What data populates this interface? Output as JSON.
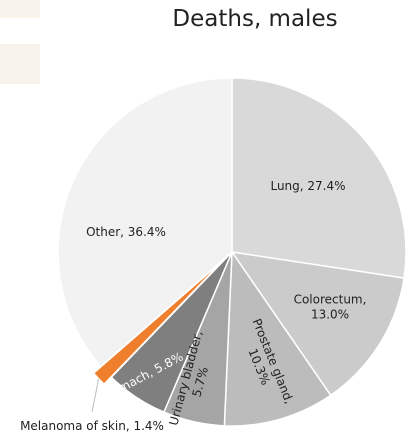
{
  "chart_data": {
    "type": "pie",
    "title": "Deaths, males",
    "start_angle_deg": 0,
    "direction": "clockwise",
    "slices": [
      {
        "name": "Lung",
        "value": 27.4,
        "label": "Lung, 27.4%",
        "color": "#d9d9d9",
        "label_color": "#222222"
      },
      {
        "name": "Colorectum",
        "value": 13.0,
        "label": "Colorectum, 13.0%",
        "label_lines": [
          "Colorectum,",
          "13.0%"
        ],
        "color": "#cbcbcb",
        "label_color": "#222222"
      },
      {
        "name": "Prostate gland",
        "value": 10.3,
        "label": "Prostate gland, 10.3%",
        "label_lines": [
          "Prostate gland,",
          "10.3%"
        ],
        "color": "#bcbcbc",
        "label_color": "#222222",
        "rotated": true
      },
      {
        "name": "Urinary bladder",
        "value": 5.7,
        "label": "Urinary bladder, 5.7%",
        "label_lines": [
          "Urinary bladder,",
          "5.7%"
        ],
        "color": "#a5a5a5",
        "label_color": "#222222",
        "rotated": true
      },
      {
        "name": "Stomach",
        "value": 5.8,
        "label": "Stomach, 5.8%",
        "color": "#7f7f7f",
        "label_color": "#ffffff",
        "rotated": true
      },
      {
        "name": "Melanoma of skin",
        "value": 1.4,
        "label": "Melanoma of skin, 1.4%",
        "color": "#f07f2d",
        "label_color": "#222222",
        "exploded": true
      },
      {
        "name": "Other",
        "value": 36.4,
        "label": "Other, 36.4%",
        "color": "#f2f2f2",
        "label_color": "#222222"
      }
    ]
  }
}
